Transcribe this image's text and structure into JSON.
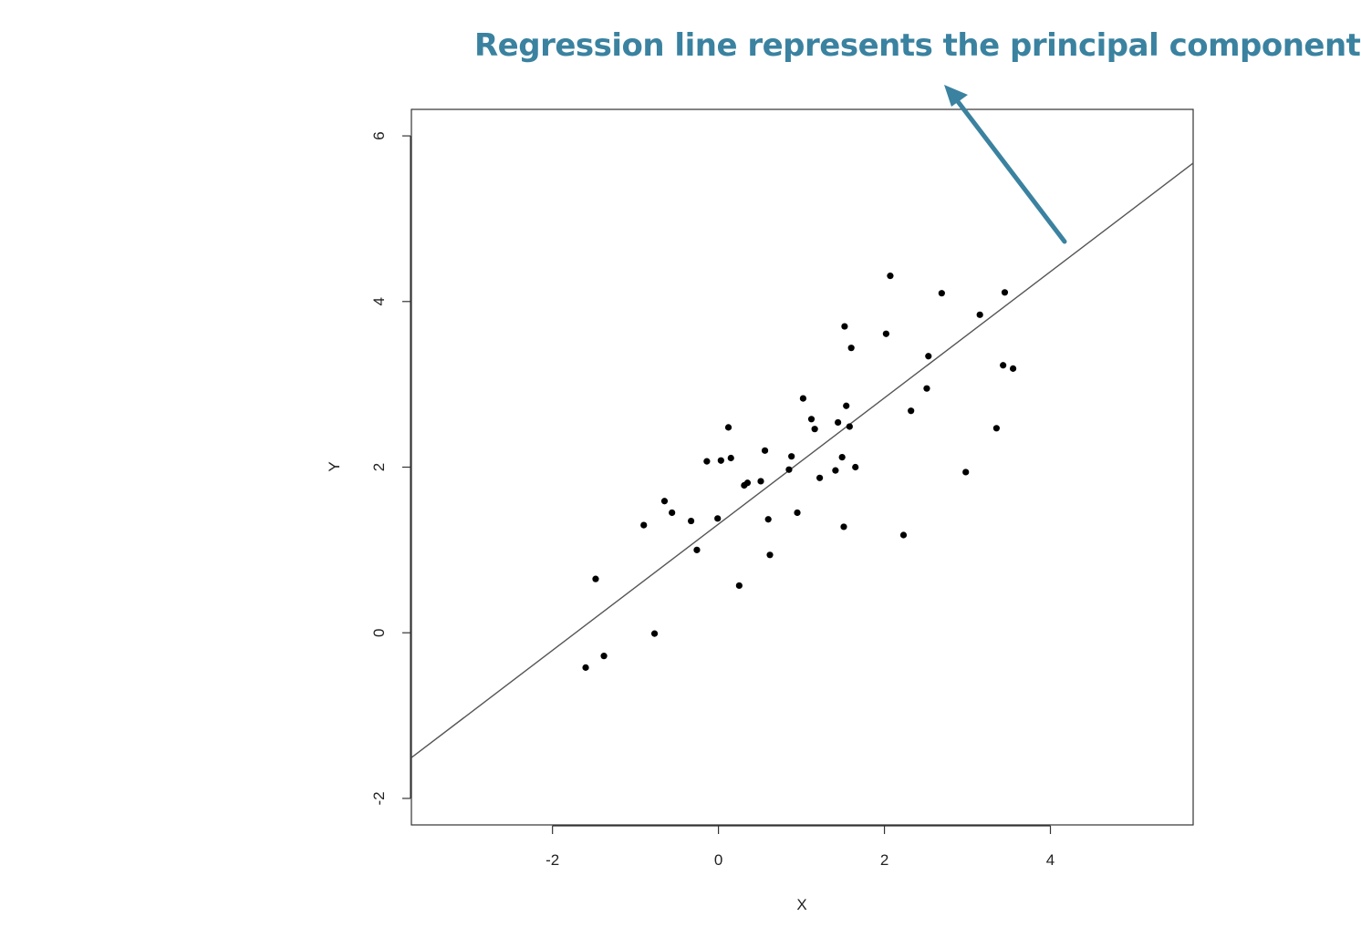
{
  "annotation": {
    "text": "Regression line represents the principal component",
    "color": "#3a82a0"
  },
  "chart_data": {
    "type": "scatter",
    "title": "",
    "xlabel": "X",
    "ylabel": "Y",
    "xlim": [
      -3.7,
      5.72
    ],
    "ylim": [
      -2.32,
      6.32
    ],
    "xticks": [
      -2,
      0,
      2,
      4
    ],
    "yticks": [
      -2,
      0,
      2,
      4,
      6
    ],
    "grid": false,
    "point_color": "#000000",
    "line_color": "#555555",
    "regression_line": {
      "slope": 0.7621,
      "intercept": 1.312
    },
    "points": [
      {
        "x": -1.6,
        "y": -0.42
      },
      {
        "x": -1.48,
        "y": 0.65
      },
      {
        "x": -1.38,
        "y": -0.28
      },
      {
        "x": -0.9,
        "y": 1.3
      },
      {
        "x": -0.77,
        "y": -0.01
      },
      {
        "x": -0.65,
        "y": 1.59
      },
      {
        "x": -0.56,
        "y": 1.45
      },
      {
        "x": -0.33,
        "y": 1.35
      },
      {
        "x": -0.26,
        "y": 1.0
      },
      {
        "x": -0.14,
        "y": 2.07
      },
      {
        "x": -0.01,
        "y": 1.38
      },
      {
        "x": 0.03,
        "y": 2.08
      },
      {
        "x": 0.12,
        "y": 2.48
      },
      {
        "x": 0.15,
        "y": 2.11
      },
      {
        "x": 0.25,
        "y": 0.57
      },
      {
        "x": 0.31,
        "y": 1.78
      },
      {
        "x": 0.35,
        "y": 1.81
      },
      {
        "x": 0.51,
        "y": 1.83
      },
      {
        "x": 0.56,
        "y": 2.2
      },
      {
        "x": 0.6,
        "y": 1.37
      },
      {
        "x": 0.62,
        "y": 0.94
      },
      {
        "x": 0.85,
        "y": 1.97
      },
      {
        "x": 0.88,
        "y": 2.13
      },
      {
        "x": 0.95,
        "y": 1.45
      },
      {
        "x": 1.02,
        "y": 2.83
      },
      {
        "x": 1.12,
        "y": 2.58
      },
      {
        "x": 1.16,
        "y": 2.46
      },
      {
        "x": 1.22,
        "y": 1.87
      },
      {
        "x": 1.41,
        "y": 1.96
      },
      {
        "x": 1.44,
        "y": 2.54
      },
      {
        "x": 1.49,
        "y": 2.12
      },
      {
        "x": 1.51,
        "y": 1.28
      },
      {
        "x": 1.52,
        "y": 3.7
      },
      {
        "x": 1.54,
        "y": 2.74
      },
      {
        "x": 1.58,
        "y": 2.49
      },
      {
        "x": 1.6,
        "y": 3.44
      },
      {
        "x": 1.65,
        "y": 2.0
      },
      {
        "x": 2.02,
        "y": 3.61
      },
      {
        "x": 2.07,
        "y": 4.31
      },
      {
        "x": 2.23,
        "y": 1.18
      },
      {
        "x": 2.32,
        "y": 2.68
      },
      {
        "x": 2.51,
        "y": 2.95
      },
      {
        "x": 2.53,
        "y": 3.34
      },
      {
        "x": 2.69,
        "y": 4.1
      },
      {
        "x": 2.98,
        "y": 1.94
      },
      {
        "x": 3.15,
        "y": 3.84
      },
      {
        "x": 3.35,
        "y": 2.47
      },
      {
        "x": 3.43,
        "y": 3.23
      },
      {
        "x": 3.45,
        "y": 4.11
      },
      {
        "x": 3.55,
        "y": 3.19
      }
    ]
  }
}
